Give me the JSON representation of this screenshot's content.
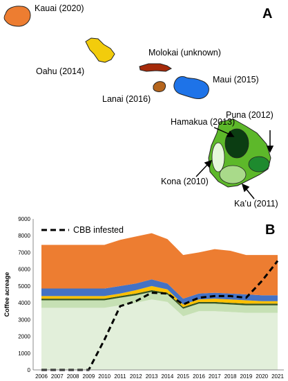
{
  "map": {
    "panel_label": "A",
    "islands": [
      {
        "id": "kauai",
        "label": "Kauai (2020)",
        "color": "#ED7D31"
      },
      {
        "id": "oahu",
        "label": "Oahu (2014)",
        "color": "#F2CC0C"
      },
      {
        "id": "molokai",
        "label": "Molokai (unknown)",
        "color": "#A52A0A"
      },
      {
        "id": "lanai",
        "label": "Lanai (2016)",
        "color": "#B5651D"
      },
      {
        "id": "maui",
        "label": "Maui (2015)",
        "color": "#1E73E8"
      },
      {
        "id": "hawaii",
        "label": "",
        "color": "#5DB82A"
      }
    ],
    "regions": [
      {
        "id": "hamakua",
        "label": "Hamakua (2013)",
        "color": "#0B3D12"
      },
      {
        "id": "puna",
        "label": "Puna (2012)",
        "color": "#1E8A2E"
      },
      {
        "id": "kona",
        "label": "Kona (2010)",
        "color": "#E6F7DC"
      },
      {
        "id": "kau",
        "label": "Ka’u (2011)",
        "color": "#A9DA8A"
      }
    ]
  },
  "chart_data": {
    "type": "area",
    "panel_label": "B",
    "ylabel": "Coffee acreage",
    "xlabel": "",
    "ylim": [
      0,
      9000
    ],
    "yticks": [
      "0",
      "1000",
      "2000",
      "3000",
      "4000",
      "5000",
      "6000",
      "7000",
      "8000",
      "9000"
    ],
    "x": [
      "2006",
      "2007",
      "2008",
      "2009",
      "2010",
      "2011",
      "2012",
      "2013",
      "2014",
      "2015",
      "2016",
      "2017",
      "2018",
      "2019",
      "2020",
      "2021"
    ],
    "stacked": true,
    "series": [
      {
        "color": "#E2EFDA",
        "values": [
          3700,
          3700,
          3700,
          3700,
          3700,
          3850,
          4000,
          4200,
          4050,
          3200,
          3500,
          3500,
          3450,
          3400,
          3400,
          3400
        ]
      },
      {
        "color": "#C6E0B4",
        "values": [
          450,
          450,
          450,
          450,
          450,
          450,
          450,
          450,
          450,
          450,
          450,
          450,
          450,
          450,
          450,
          450
        ]
      },
      {
        "color": "#375623",
        "values": [
          100,
          100,
          100,
          100,
          100,
          100,
          100,
          100,
          100,
          100,
          100,
          100,
          100,
          100,
          100,
          100
        ]
      },
      {
        "color": "#FFC000",
        "values": [
          150,
          150,
          150,
          150,
          150,
          150,
          200,
          250,
          200,
          150,
          150,
          200,
          200,
          200,
          150,
          150
        ]
      },
      {
        "color": "#4472C4",
        "values": [
          450,
          450,
          450,
          450,
          450,
          450,
          400,
          400,
          350,
          350,
          350,
          350,
          350,
          350,
          350,
          350
        ]
      },
      {
        "color": "#ED7D31",
        "values": [
          2600,
          2600,
          2600,
          2600,
          2600,
          2750,
          2800,
          2750,
          2650,
          2600,
          2450,
          2600,
          2550,
          2350,
          2400,
          2400
        ]
      }
    ],
    "infested_line": {
      "name": "CBB infested",
      "color": "#000000",
      "values": [
        0,
        0,
        0,
        0,
        1800,
        3800,
        4100,
        4600,
        4550,
        3900,
        4300,
        4400,
        4400,
        4300,
        5300,
        6500
      ]
    }
  }
}
